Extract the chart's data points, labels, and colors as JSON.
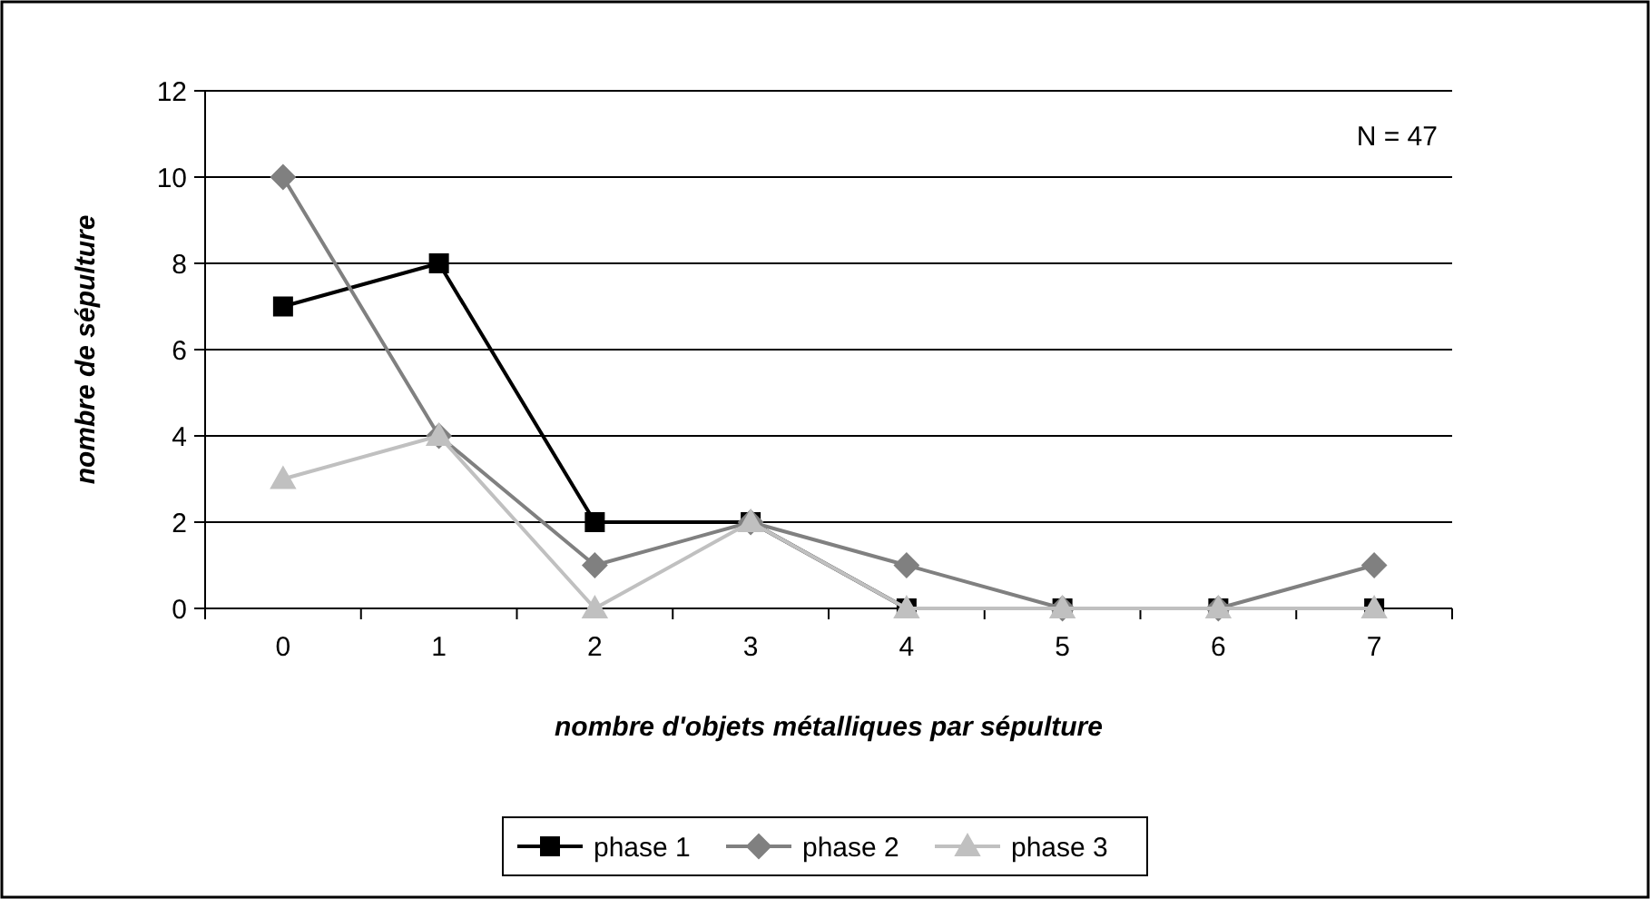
{
  "chart_data": {
    "type": "line",
    "xlabel": "nombre d'objets métalliques par sépulture",
    "ylabel": "nombre de sépulture",
    "categories": [
      "0",
      "1",
      "2",
      "3",
      "4",
      "5",
      "6",
      "7"
    ],
    "series": [
      {
        "name": "phase 1",
        "color": "#000000",
        "marker": "square",
        "values": [
          7,
          8,
          2,
          2,
          0,
          0,
          0,
          0
        ]
      },
      {
        "name": "phase 2",
        "color": "#808080",
        "marker": "diamond",
        "values": [
          10,
          4,
          1,
          2,
          1,
          0,
          0,
          1
        ]
      },
      {
        "name": "phase 3",
        "color": "#c0c0c0",
        "marker": "triangle",
        "values": [
          3,
          4,
          0,
          2,
          0,
          0,
          0,
          0
        ]
      }
    ],
    "ylim": [
      0,
      12
    ],
    "yticks": [
      0,
      2,
      4,
      6,
      8,
      10,
      12
    ],
    "grid": "y",
    "legend": "bottom",
    "line_style": "solid",
    "annotations": [
      "N = 47"
    ]
  }
}
